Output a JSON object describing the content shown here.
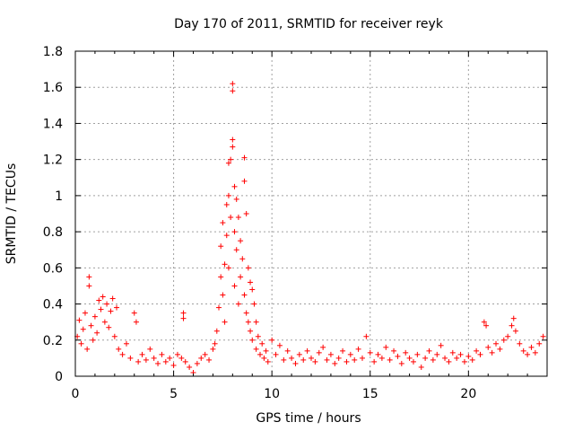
{
  "chart_data": {
    "type": "scatter",
    "title": "Day 170 of 2011, SRMTID for receiver reyk",
    "xlabel": "GPS time / hours",
    "ylabel": "SRMTID / TECUs",
    "xlim": [
      0,
      24
    ],
    "ylim": [
      0,
      1.8
    ],
    "xticks": [
      0,
      5,
      10,
      15,
      20
    ],
    "xtick_labels": [
      "0",
      "5",
      "10",
      "15",
      "20"
    ],
    "yticks": [
      0,
      0.2,
      0.4,
      0.6,
      0.8,
      1.0,
      1.2,
      1.4,
      1.6,
      1.8
    ],
    "ytick_labels": [
      "0",
      "0.2",
      "0.4",
      "0.6",
      "0.8",
      "1",
      "1.2",
      "1.4",
      "1.6",
      "1.8"
    ],
    "grid": true,
    "marker": "plus",
    "color": "#ff0000",
    "series": [
      {
        "name": "SRMTID",
        "points": [
          [
            0.1,
            0.22
          ],
          [
            0.2,
            0.31
          ],
          [
            0.3,
            0.18
          ],
          [
            0.4,
            0.26
          ],
          [
            0.5,
            0.35
          ],
          [
            0.6,
            0.15
          ],
          [
            0.7,
            0.55
          ],
          [
            0.7,
            0.5
          ],
          [
            0.8,
            0.28
          ],
          [
            0.9,
            0.2
          ],
          [
            1.0,
            0.33
          ],
          [
            1.1,
            0.24
          ],
          [
            1.2,
            0.42
          ],
          [
            1.3,
            0.37
          ],
          [
            1.4,
            0.44
          ],
          [
            1.5,
            0.3
          ],
          [
            1.6,
            0.4
          ],
          [
            1.7,
            0.27
          ],
          [
            1.8,
            0.36
          ],
          [
            1.9,
            0.43
          ],
          [
            2.0,
            0.22
          ],
          [
            2.1,
            0.38
          ],
          [
            2.2,
            0.15
          ],
          [
            2.4,
            0.12
          ],
          [
            2.6,
            0.18
          ],
          [
            2.8,
            0.1
          ],
          [
            3.0,
            0.35
          ],
          [
            3.1,
            0.3
          ],
          [
            3.2,
            0.08
          ],
          [
            3.4,
            0.12
          ],
          [
            3.6,
            0.09
          ],
          [
            3.8,
            0.15
          ],
          [
            4.0,
            0.1
          ],
          [
            4.2,
            0.07
          ],
          [
            4.4,
            0.12
          ],
          [
            4.6,
            0.08
          ],
          [
            4.8,
            0.1
          ],
          [
            5.0,
            0.06
          ],
          [
            5.2,
            0.12
          ],
          [
            5.4,
            0.1
          ],
          [
            5.5,
            0.35
          ],
          [
            5.5,
            0.32
          ],
          [
            5.6,
            0.08
          ],
          [
            5.8,
            0.05
          ],
          [
            6.0,
            0.02
          ],
          [
            6.2,
            0.07
          ],
          [
            6.4,
            0.1
          ],
          [
            6.6,
            0.12
          ],
          [
            6.8,
            0.09
          ],
          [
            7.0,
            0.15
          ],
          [
            7.1,
            0.18
          ],
          [
            7.2,
            0.25
          ],
          [
            7.3,
            0.38
          ],
          [
            7.4,
            0.55
          ],
          [
            7.4,
            0.72
          ],
          [
            7.5,
            0.85
          ],
          [
            7.5,
            0.45
          ],
          [
            7.6,
            0.62
          ],
          [
            7.6,
            0.3
          ],
          [
            7.7,
            0.78
          ],
          [
            7.7,
            0.95
          ],
          [
            7.8,
            1.18
          ],
          [
            7.8,
            1.0
          ],
          [
            7.8,
            0.6
          ],
          [
            7.9,
            1.2
          ],
          [
            7.9,
            0.88
          ],
          [
            8.0,
            1.62
          ],
          [
            8.0,
            1.58
          ],
          [
            8.0,
            1.31
          ],
          [
            8.0,
            1.27
          ],
          [
            8.1,
            1.05
          ],
          [
            8.1,
            0.8
          ],
          [
            8.1,
            0.5
          ],
          [
            8.2,
            0.98
          ],
          [
            8.2,
            0.7
          ],
          [
            8.3,
            0.88
          ],
          [
            8.3,
            0.4
          ],
          [
            8.4,
            0.75
          ],
          [
            8.4,
            0.55
          ],
          [
            8.5,
            0.65
          ],
          [
            8.6,
            1.21
          ],
          [
            8.6,
            1.08
          ],
          [
            8.6,
            0.45
          ],
          [
            8.7,
            0.9
          ],
          [
            8.7,
            0.35
          ],
          [
            8.8,
            0.6
          ],
          [
            8.8,
            0.3
          ],
          [
            8.9,
            0.52
          ],
          [
            8.9,
            0.25
          ],
          [
            9.0,
            0.48
          ],
          [
            9.0,
            0.2
          ],
          [
            9.1,
            0.4
          ],
          [
            9.2,
            0.3
          ],
          [
            9.2,
            0.15
          ],
          [
            9.3,
            0.22
          ],
          [
            9.4,
            0.12
          ],
          [
            9.5,
            0.18
          ],
          [
            9.6,
            0.1
          ],
          [
            9.7,
            0.14
          ],
          [
            9.8,
            0.08
          ],
          [
            10.0,
            0.2
          ],
          [
            10.2,
            0.12
          ],
          [
            10.4,
            0.17
          ],
          [
            10.6,
            0.09
          ],
          [
            10.8,
            0.14
          ],
          [
            11.0,
            0.1
          ],
          [
            11.2,
            0.07
          ],
          [
            11.4,
            0.12
          ],
          [
            11.6,
            0.09
          ],
          [
            11.8,
            0.14
          ],
          [
            12.0,
            0.1
          ],
          [
            12.2,
            0.08
          ],
          [
            12.4,
            0.13
          ],
          [
            12.6,
            0.16
          ],
          [
            12.8,
            0.09
          ],
          [
            13.0,
            0.12
          ],
          [
            13.2,
            0.07
          ],
          [
            13.4,
            0.1
          ],
          [
            13.6,
            0.14
          ],
          [
            13.8,
            0.08
          ],
          [
            14.0,
            0.12
          ],
          [
            14.2,
            0.09
          ],
          [
            14.4,
            0.15
          ],
          [
            14.6,
            0.1
          ],
          [
            14.8,
            0.22
          ],
          [
            15.0,
            0.13
          ],
          [
            15.2,
            0.08
          ],
          [
            15.4,
            0.12
          ],
          [
            15.6,
            0.1
          ],
          [
            15.8,
            0.16
          ],
          [
            16.0,
            0.09
          ],
          [
            16.2,
            0.14
          ],
          [
            16.4,
            0.11
          ],
          [
            16.6,
            0.07
          ],
          [
            16.8,
            0.13
          ],
          [
            17.0,
            0.1
          ],
          [
            17.2,
            0.08
          ],
          [
            17.4,
            0.12
          ],
          [
            17.6,
            0.05
          ],
          [
            17.8,
            0.1
          ],
          [
            18.0,
            0.14
          ],
          [
            18.2,
            0.09
          ],
          [
            18.4,
            0.12
          ],
          [
            18.6,
            0.17
          ],
          [
            18.8,
            0.1
          ],
          [
            19.0,
            0.08
          ],
          [
            19.2,
            0.13
          ],
          [
            19.4,
            0.1
          ],
          [
            19.6,
            0.12
          ],
          [
            19.8,
            0.08
          ],
          [
            20.0,
            0.11
          ],
          [
            20.2,
            0.09
          ],
          [
            20.4,
            0.14
          ],
          [
            20.6,
            0.12
          ],
          [
            20.8,
            0.3
          ],
          [
            20.9,
            0.28
          ],
          [
            21.0,
            0.16
          ],
          [
            21.2,
            0.13
          ],
          [
            21.4,
            0.18
          ],
          [
            21.6,
            0.15
          ],
          [
            21.8,
            0.2
          ],
          [
            22.0,
            0.22
          ],
          [
            22.2,
            0.28
          ],
          [
            22.3,
            0.32
          ],
          [
            22.4,
            0.25
          ],
          [
            22.6,
            0.18
          ],
          [
            22.8,
            0.14
          ],
          [
            23.0,
            0.12
          ],
          [
            23.2,
            0.16
          ],
          [
            23.4,
            0.13
          ],
          [
            23.6,
            0.18
          ],
          [
            23.8,
            0.22
          ]
        ]
      }
    ]
  }
}
